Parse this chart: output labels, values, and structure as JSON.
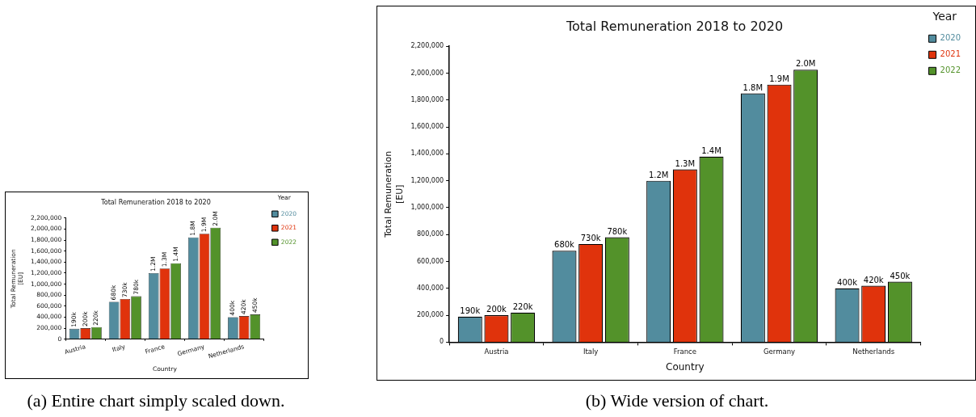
{
  "chart_data": [
    {
      "type": "bar",
      "title": "Total Remuneration 2018 to 2020",
      "xlabel": "Country",
      "ylabel": "Total Remuneration\n[EU]",
      "legend_title": "Year",
      "legend": "right",
      "grid": false,
      "categories": [
        "Austria",
        "Italy",
        "France",
        "Germany",
        "Netherlands"
      ],
      "ylim": [
        0,
        2200000
      ],
      "yticks": [
        0,
        {
          "value": 200000,
          "label": "200,000"
        },
        {
          "value": 400000,
          "label": "400,000"
        },
        {
          "value": 600000,
          "label": "600,000"
        },
        {
          "value": 800000,
          "label": "800,000"
        },
        {
          "value": 1000000,
          "label": "1,000,000"
        },
        {
          "value": 1200000,
          "label": "1,200,000"
        },
        {
          "value": 1400000,
          "label": "1,400,000"
        },
        {
          "value": 1600000,
          "label": "1,600,000"
        },
        {
          "value": 1800000,
          "label": "1,800,000"
        },
        {
          "value": 2000000,
          "label": "2,000,000"
        },
        {
          "value": 2200000,
          "label": "2,200,000"
        }
      ],
      "series": [
        {
          "name": "2020",
          "color": "#528c9e",
          "values": [
            190000,
            680000,
            1200000,
            1850000,
            400000
          ],
          "value_labels": [
            "190k",
            "680k",
            "1.2M",
            "1.8M",
            "400k"
          ]
        },
        {
          "name": "2021",
          "color": "#e0330c",
          "values": [
            200000,
            730000,
            1285000,
            1915000,
            420000
          ],
          "value_labels": [
            "200k",
            "730k",
            "1.3M",
            "1.9M",
            "420k"
          ]
        },
        {
          "name": "2022",
          "color": "#53922a",
          "values": [
            220000,
            780000,
            1380000,
            2025000,
            450000
          ],
          "value_labels": [
            "220k",
            "780k",
            "1.4M",
            "2.0M",
            "450k"
          ]
        }
      ],
      "annotations": [
        "(a) Entire chart simply scaled down."
      ]
    },
    {
      "type": "bar",
      "title": "Total Remuneration 2018 to 2020",
      "xlabel": "Country",
      "ylabel": "Total Remuneration\n[EU]",
      "legend_title": "Year",
      "legend": "right",
      "grid": false,
      "categories": [
        "Austria",
        "Italy",
        "France",
        "Germany",
        "Netherlands"
      ],
      "ylim": [
        0,
        2200000
      ],
      "yticks": [
        0,
        {
          "value": 200000,
          "label": "200,000"
        },
        {
          "value": 400000,
          "label": "400,000"
        },
        {
          "value": 600000,
          "label": "600,000"
        },
        {
          "value": 800000,
          "label": "800,000"
        },
        {
          "value": 1000000,
          "label": "1,000,000"
        },
        {
          "value": 1200000,
          "label": "1,200,000"
        },
        {
          "value": 1400000,
          "label": "1,400,000"
        },
        {
          "value": 1600000,
          "label": "1,600,000"
        },
        {
          "value": 1800000,
          "label": "1,800,000"
        },
        {
          "value": 2000000,
          "label": "2,000,000"
        },
        {
          "value": 2200000,
          "label": "2,200,000"
        }
      ],
      "series": [
        {
          "name": "2020",
          "color": "#528c9e",
          "values": [
            190000,
            680000,
            1200000,
            1850000,
            400000
          ],
          "value_labels": [
            "190k",
            "680k",
            "1.2M",
            "1.8M",
            "400k"
          ]
        },
        {
          "name": "2021",
          "color": "#e0330c",
          "values": [
            200000,
            730000,
            1285000,
            1915000,
            420000
          ],
          "value_labels": [
            "200k",
            "730k",
            "1.3M",
            "1.9M",
            "420k"
          ]
        },
        {
          "name": "2022",
          "color": "#53922a",
          "values": [
            220000,
            780000,
            1380000,
            2025000,
            450000
          ],
          "value_labels": [
            "220k",
            "780k",
            "1.4M",
            "2.0M",
            "450k"
          ]
        }
      ],
      "annotations": [
        "(b) Wide version of chart."
      ]
    }
  ]
}
